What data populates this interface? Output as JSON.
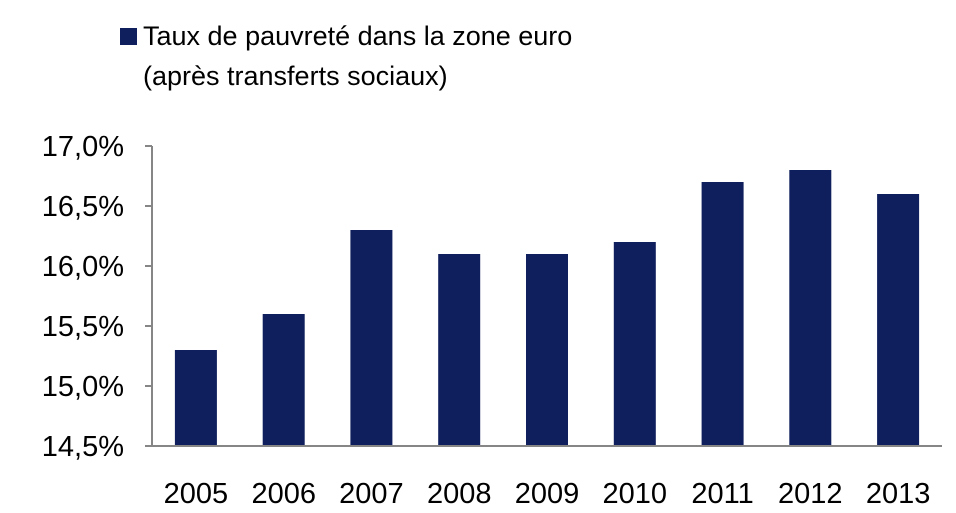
{
  "chart_data": {
    "type": "bar",
    "legend_position": "top-left",
    "grid": false,
    "series": [
      {
        "name_lines": [
          "Taux de pauvreté dans la zone euro",
          "(après transferts sociaux)"
        ],
        "color": "#0f1e5c",
        "values": [
          15.3,
          15.6,
          16.3,
          16.1,
          16.1,
          16.2,
          16.7,
          16.8,
          16.6
        ]
      }
    ],
    "categories": [
      "2005",
      "2006",
      "2007",
      "2008",
      "2009",
      "2010",
      "2011",
      "2012",
      "2013"
    ],
    "ylim": [
      14.5,
      17.0
    ],
    "yticks": [
      14.5,
      15.0,
      15.5,
      16.0,
      16.5,
      17.0
    ],
    "ytick_labels": [
      "14,5%",
      "15,0%",
      "15,5%",
      "16,0%",
      "16,5%",
      "17,0%"
    ]
  }
}
